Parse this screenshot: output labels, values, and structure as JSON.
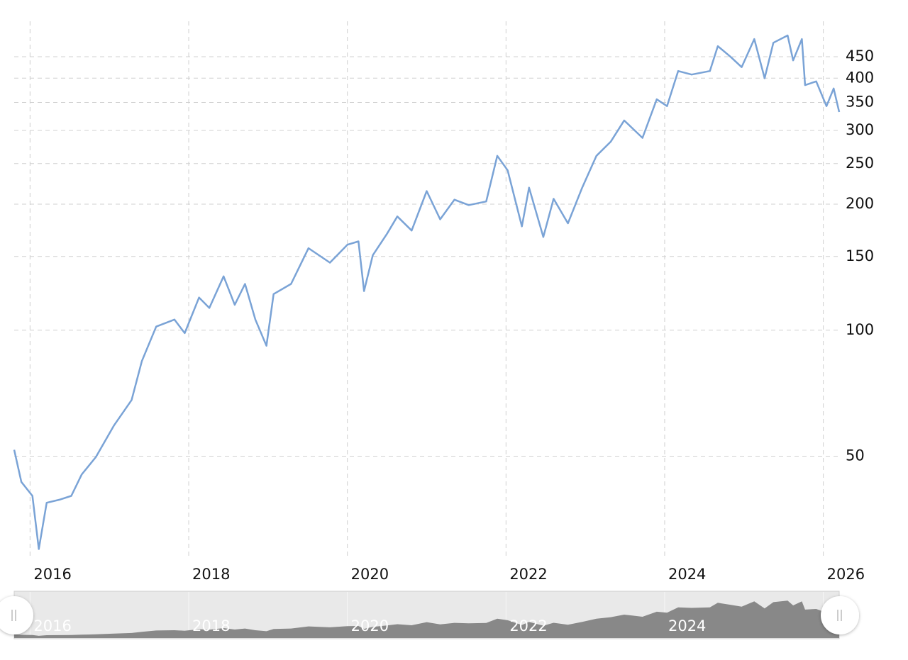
{
  "chart_data": {
    "type": "line",
    "color": "#7aa3d6",
    "log_scale": true,
    "grid": true,
    "x": [
      2015.8,
      2015.89,
      2016.03,
      2016.11,
      2016.21,
      2016.38,
      2016.52,
      2016.65,
      2016.83,
      2017.06,
      2017.28,
      2017.41,
      2017.59,
      2017.82,
      2017.95,
      2018.13,
      2018.26,
      2018.44,
      2018.58,
      2018.71,
      2018.84,
      2018.98,
      2019.07,
      2019.29,
      2019.51,
      2019.78,
      2020.0,
      2020.14,
      2020.21,
      2020.32,
      2020.5,
      2020.63,
      2020.81,
      2021.0,
      2021.17,
      2021.35,
      2021.53,
      2021.75,
      2021.89,
      2022.02,
      2022.2,
      2022.29,
      2022.47,
      2022.6,
      2022.78,
      2022.96,
      2023.14,
      2023.32,
      2023.49,
      2023.72,
      2023.9,
      2024.03,
      2024.17,
      2024.34,
      2024.57,
      2024.67,
      2024.83,
      2024.97,
      2025.13,
      2025.26,
      2025.37,
      2025.55,
      2025.62,
      2025.73,
      2025.77,
      2025.91,
      2026.04,
      2026.13,
      2026.2
    ],
    "values": [
      51.8,
      43.4,
      40.2,
      30,
      38.7,
      39.4,
      40.2,
      45.2,
      49.8,
      59.3,
      68.1,
      84.4,
      102,
      106,
      98.4,
      119.7,
      113,
      134.5,
      115,
      129,
      106,
      91.8,
      122,
      129,
      157,
      145,
      160,
      163,
      124,
      151,
      170,
      187,
      173,
      215,
      184,
      205,
      199,
      203,
      261,
      241,
      177,
      219,
      167,
      206,
      180,
      219,
      261,
      282,
      317,
      288,
      356,
      343,
      416,
      408,
      416,
      477,
      450,
      425,
      496,
      400,
      486,
      506,
      441,
      496,
      385,
      393,
      343,
      378,
      332
    ],
    "xlim": [
      2015.8,
      2026.2
    ],
    "xticks": [
      2016,
      2018,
      2020,
      2022,
      2024,
      2026
    ],
    "ylim": [
      28.8,
      547
    ],
    "yticks": [
      50,
      100,
      150,
      200,
      250,
      300,
      350,
      400,
      450
    ]
  }
}
